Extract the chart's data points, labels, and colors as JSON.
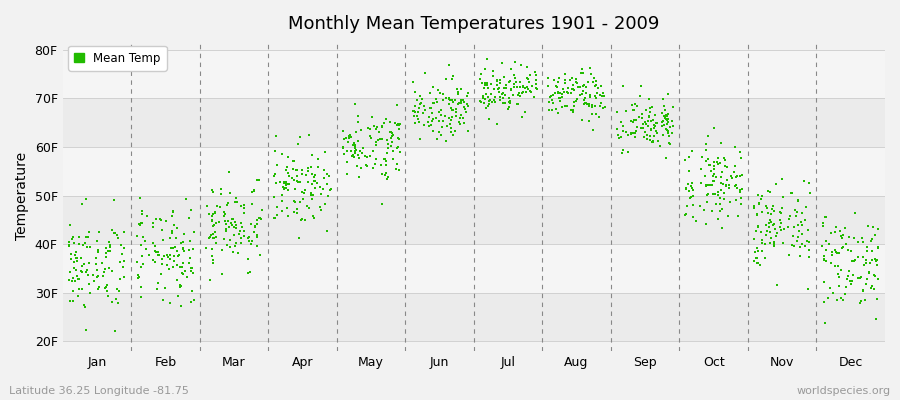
{
  "title": "Monthly Mean Temperatures 1901 - 2009",
  "ylabel": "Temperature",
  "xlabel_labels": [
    "Jan",
    "Feb",
    "Mar",
    "Apr",
    "May",
    "Jun",
    "Jul",
    "Aug",
    "Sep",
    "Oct",
    "Nov",
    "Dec"
  ],
  "ytick_labels": [
    "20F",
    "30F",
    "40F",
    "50F",
    "60F",
    "70F",
    "80F"
  ],
  "ytick_values": [
    20,
    30,
    40,
    50,
    60,
    70,
    80
  ],
  "ylim": [
    18,
    82
  ],
  "legend_label": "Mean Temp",
  "dot_color": "#22bb00",
  "dot_size": 3,
  "background_color": "#f2f2f2",
  "band_colors": [
    "#ebebeb",
    "#f5f5f5",
    "#ebebeb",
    "#f5f5f5",
    "#ebebeb",
    "#f5f5f5"
  ],
  "subtitle": "Latitude 36.25 Longitude -81.75",
  "watermark": "worldspecies.org",
  "monthly_means": [
    35.5,
    37.5,
    44.0,
    52.0,
    60.5,
    68.0,
    72.0,
    70.5,
    64.5,
    53.0,
    43.5,
    36.5
  ],
  "monthly_stds": [
    5.0,
    5.0,
    4.5,
    4.0,
    3.5,
    3.0,
    2.5,
    2.5,
    3.0,
    4.0,
    4.5,
    5.0
  ],
  "num_years": 109,
  "seed": 42
}
